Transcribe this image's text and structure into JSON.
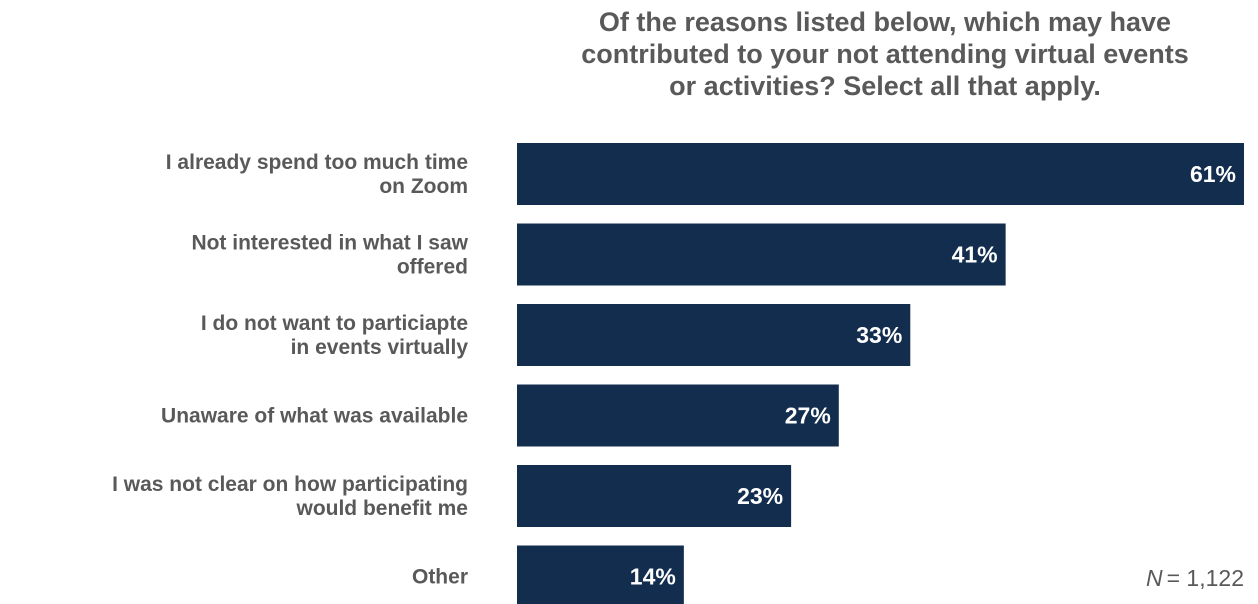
{
  "chart_data": {
    "type": "bar",
    "orientation": "horizontal",
    "title_lines": [
      "Of the reasons listed below, which may have",
      "contributed to your not attending virtual events",
      "or activities? Select all that apply."
    ],
    "categories": [
      [
        "I already spend too much time",
        "on Zoom"
      ],
      [
        "Not interested in what I saw",
        "offered"
      ],
      [
        "I do not want to particiapte",
        "in events virtually"
      ],
      [
        "Unaware of what was available"
      ],
      [
        "I was not clear on how participating",
        "would benefit me"
      ],
      [
        "Other"
      ]
    ],
    "values": [
      61,
      41,
      33,
      27,
      23,
      14
    ],
    "value_labels": [
      "61%",
      "41%",
      "33%",
      "27%",
      "23%",
      "14%"
    ],
    "unit": "%",
    "xlim": [
      0,
      61
    ],
    "grid": false,
    "legend": "none",
    "bar_color": "#132d4f",
    "label_color": "#ffffff",
    "text_color": "#595959",
    "note": {
      "symbol": "N",
      "equals": "= 1,122"
    }
  }
}
